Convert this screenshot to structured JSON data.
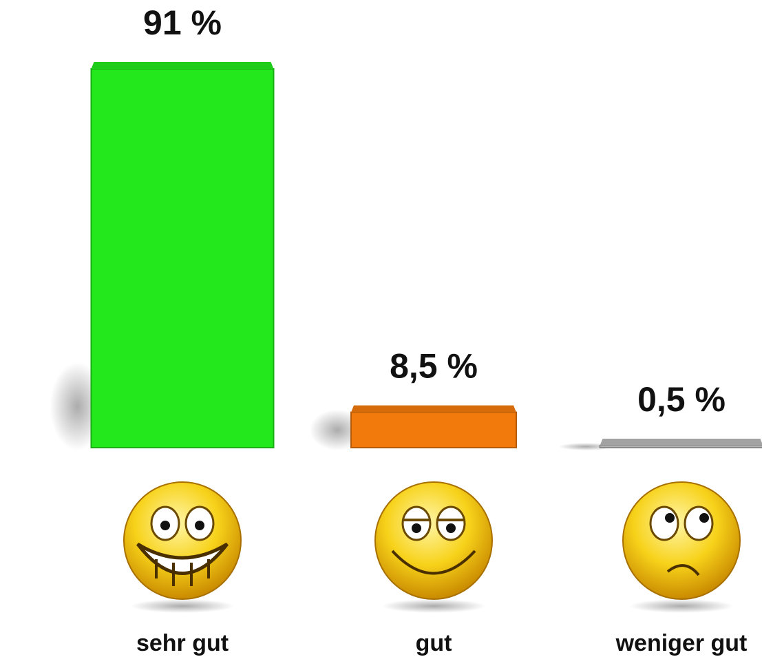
{
  "chart_data": {
    "type": "bar",
    "categories": [
      "sehr gut",
      "gut",
      "weniger gut"
    ],
    "values": [
      91,
      8.5,
      0.5
    ],
    "value_labels": [
      "91 %",
      "8,5 %",
      "0,5 %"
    ],
    "colors": [
      "#22e81c",
      "#f27a0c",
      "#b8b8b8"
    ]
  }
}
